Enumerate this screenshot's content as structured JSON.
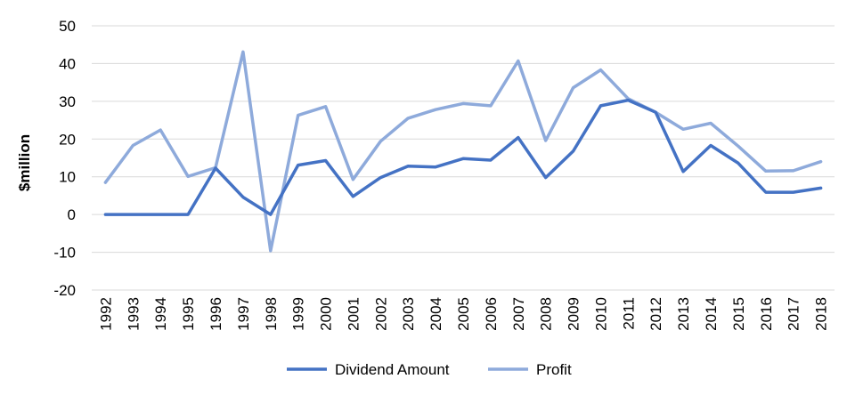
{
  "chart_data": {
    "type": "line",
    "title": "",
    "xlabel": "",
    "ylabel": "$million",
    "ylim": [
      -20,
      50
    ],
    "yticks": [
      -20,
      -10,
      0,
      10,
      20,
      30,
      40,
      50
    ],
    "grid": "horizontal",
    "legend_position": "bottom",
    "categories": [
      "1992",
      "1993",
      "1994",
      "1995",
      "1996",
      "1997",
      "1998",
      "1999",
      "2000",
      "2001",
      "2002",
      "2003",
      "2004",
      "2005",
      "2006",
      "2007",
      "2008",
      "2009",
      "2010",
      "2011",
      "2012",
      "2013",
      "2014",
      "2015",
      "2016",
      "2017",
      "2018"
    ],
    "series": [
      {
        "name": "Dividend Amount",
        "color": "#4472C4",
        "values": [
          0,
          0,
          0,
          0,
          12.3,
          4.6,
          0,
          13.1,
          14.3,
          4.8,
          9.8,
          12.8,
          12.6,
          14.8,
          14.4,
          20.4,
          9.8,
          16.8,
          28.8,
          30.3,
          27.1,
          11.4,
          18.3,
          13.6,
          5.9,
          5.9,
          7.0
        ]
      },
      {
        "name": "Profit",
        "color": "#8EAADB",
        "values": [
          8.5,
          18.3,
          22.4,
          10.1,
          12.4,
          43.1,
          -9.6,
          26.3,
          28.6,
          9.3,
          19.4,
          25.5,
          27.8,
          29.4,
          28.8,
          40.7,
          19.6,
          33.6,
          38.3,
          30.7,
          27.1,
          22.6,
          24.2,
          18.1,
          11.5,
          11.6,
          14.0
        ]
      }
    ]
  }
}
